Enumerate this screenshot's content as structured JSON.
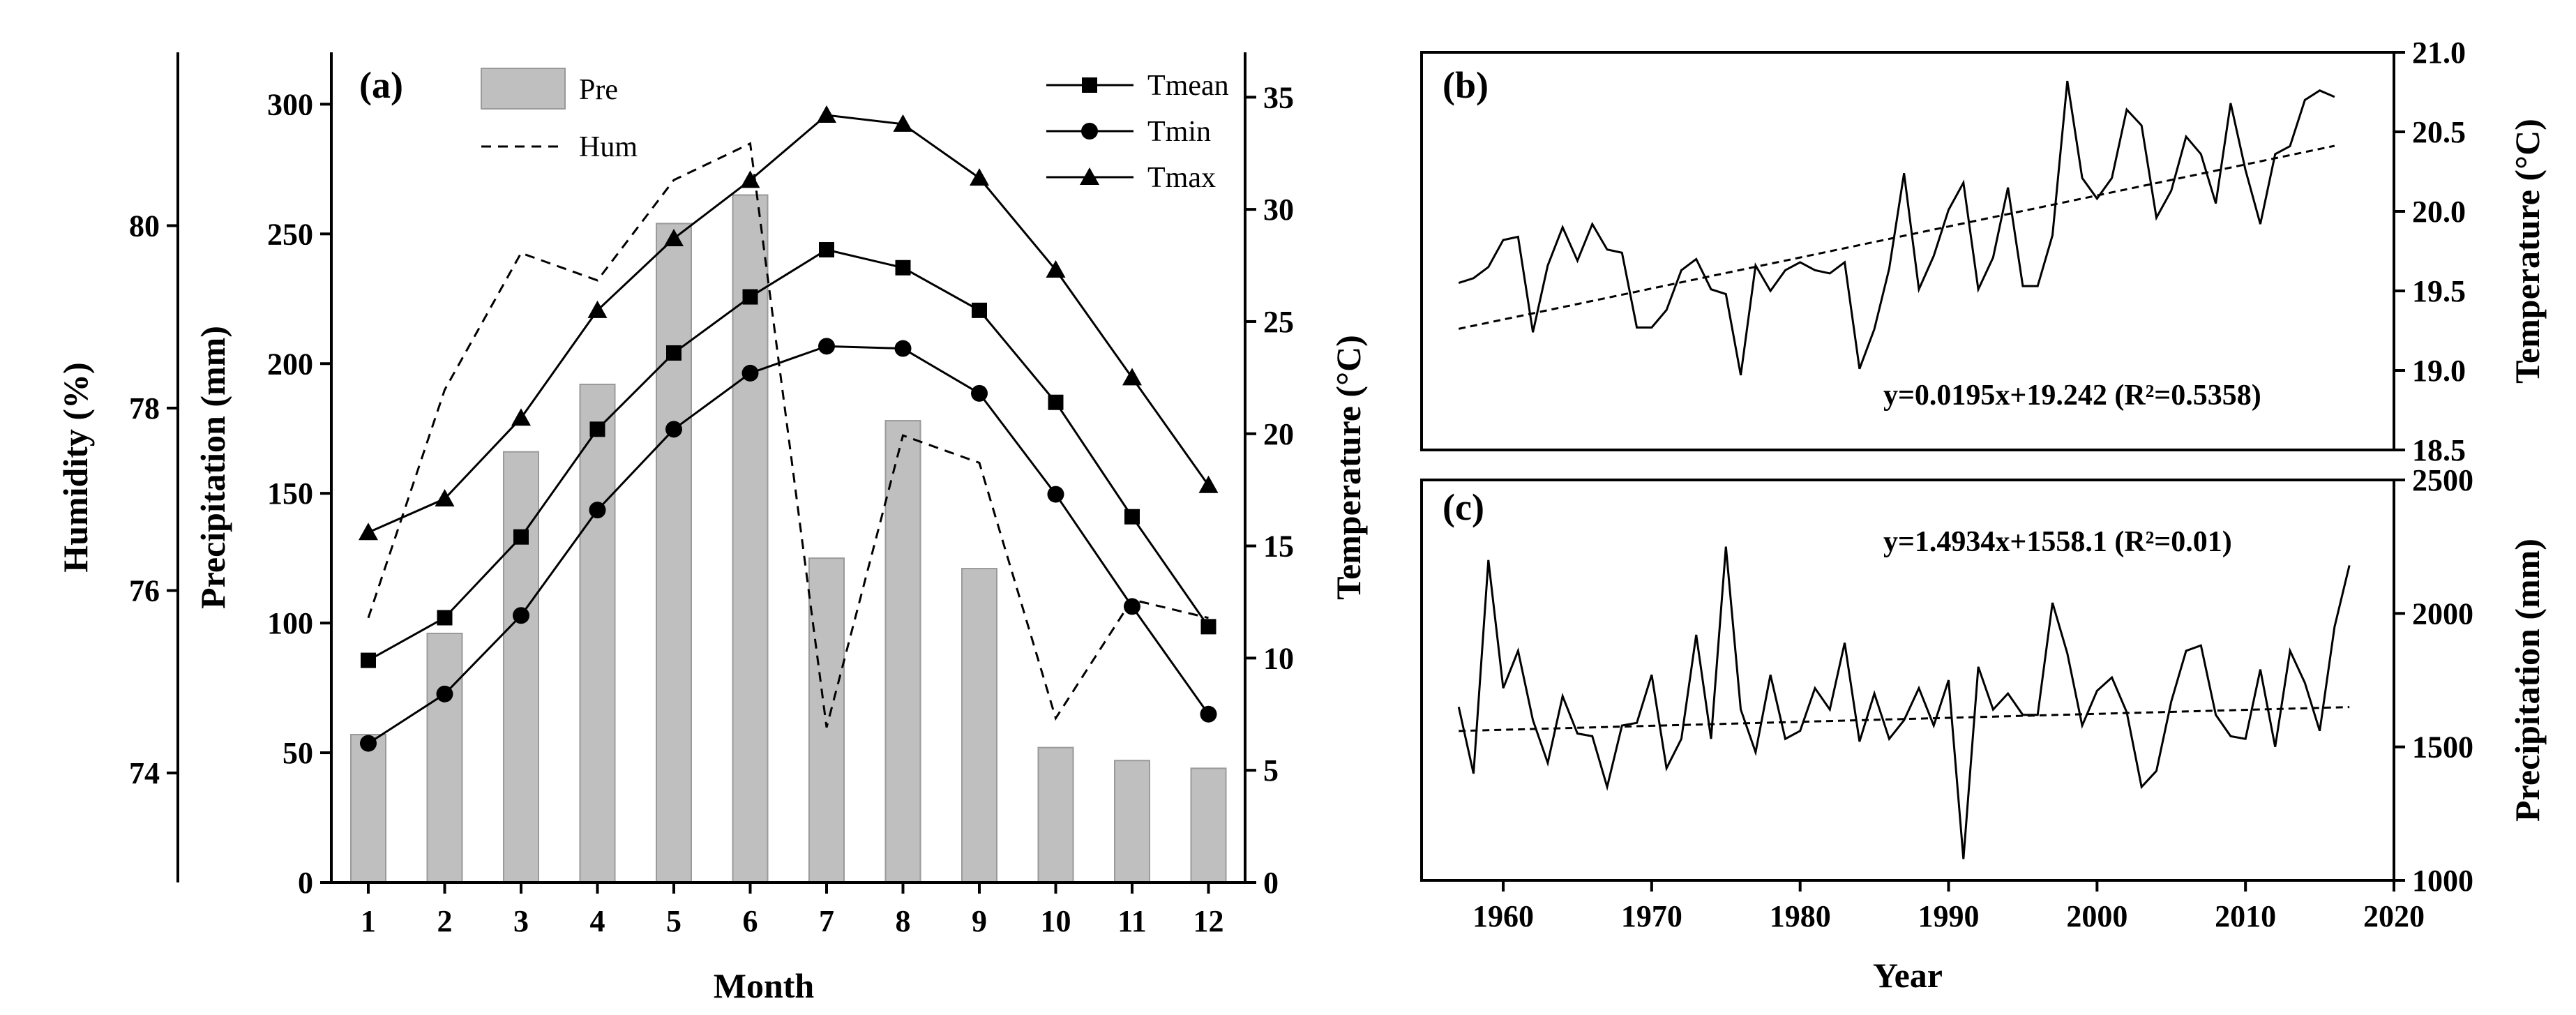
{
  "chart_data": [
    {
      "panel": "(a)",
      "type": "bar+line",
      "xlabel": "Month",
      "categories": [
        1,
        2,
        3,
        4,
        5,
        6,
        7,
        8,
        9,
        10,
        11,
        12
      ],
      "colors": {
        "bar": "#bfbfbf",
        "line": "#000000"
      },
      "bars": {
        "name": "Pre",
        "axis": "Precipitation (mm)",
        "values": [
          57,
          96,
          166,
          192,
          254,
          265,
          125,
          178,
          121,
          52,
          47,
          44
        ]
      },
      "hum": {
        "name": "Hum",
        "axis": "Humidity (%)",
        "values": [
          75.7,
          78.2,
          79.7,
          79.4,
          80.5,
          80.9,
          74.5,
          77.7,
          77.4,
          74.6,
          75.9,
          75.7
        ]
      },
      "temp_series": [
        {
          "name": "Tmean",
          "marker": "square",
          "values": [
            9.9,
            11.8,
            15.4,
            20.2,
            23.6,
            26.1,
            28.2,
            27.4,
            25.5,
            21.4,
            16.3,
            11.4
          ]
        },
        {
          "name": "Tmin",
          "marker": "circle",
          "values": [
            6.2,
            8.4,
            11.9,
            16.6,
            20.2,
            22.7,
            23.9,
            23.8,
            21.8,
            17.3,
            12.3,
            7.5
          ]
        },
        {
          "name": "Tmax",
          "marker": "triangle",
          "values": [
            15.6,
            17.1,
            20.7,
            25.5,
            28.7,
            31.3,
            34.2,
            33.8,
            31.4,
            27.3,
            22.5,
            17.7
          ]
        }
      ],
      "left_axis_humidity": {
        "title": "Humidity (%)",
        "ylim": [
          72.8,
          81.9
        ],
        "ticks": [
          "74",
          "76",
          "78",
          "80"
        ]
      },
      "left_axis_precip": {
        "title": "Precipitation (mm)",
        "ylim": [
          0,
          320
        ],
        "ticks": [
          "0",
          "50",
          "100",
          "150",
          "200",
          "250",
          "300"
        ]
      },
      "right_axis_temp": {
        "title": "Temperature (°C)",
        "ylim": [
          0,
          37
        ],
        "ticks": [
          "0",
          "5",
          "10",
          "15",
          "20",
          "25",
          "30",
          "35"
        ]
      },
      "legend": {
        "pre": "Pre",
        "hum": "Hum",
        "tmean": "Tmean",
        "tmin": "Tmin",
        "tmax": "Tmax"
      }
    },
    {
      "panel": "(b)",
      "type": "line",
      "x_start": 1957,
      "ylabel": "Temperature (°C)",
      "ylim": [
        18.5,
        21.0
      ],
      "yticks": [
        "18.5",
        "19.0",
        "19.5",
        "20.0",
        "20.5",
        "21.0"
      ],
      "values": [
        19.55,
        19.58,
        19.65,
        19.82,
        19.84,
        19.24,
        19.66,
        19.9,
        19.69,
        19.92,
        19.76,
        19.74,
        19.27,
        19.27,
        19.38,
        19.63,
        19.7,
        19.51,
        19.48,
        18.97,
        19.66,
        19.5,
        19.63,
        19.68,
        19.63,
        19.61,
        19.68,
        19.01,
        19.26,
        19.64,
        20.24,
        19.51,
        19.72,
        20.01,
        20.18,
        19.51,
        19.71,
        20.15,
        19.53,
        19.53,
        19.85,
        20.82,
        20.21,
        20.08,
        20.21,
        20.64,
        20.54,
        19.96,
        20.13,
        20.47,
        20.36,
        20.05,
        20.68,
        20.26,
        19.92,
        20.36,
        20.41,
        20.7,
        20.76,
        20.72
      ],
      "trend": {
        "slope": 0.0195,
        "intercept": 19.242
      },
      "equation": "y=0.0195x+19.242 (R²=0.5358)"
    },
    {
      "panel": "(c)",
      "type": "line",
      "x_start": 1957,
      "xlabel": "Year",
      "ylabel": "Precipitation (mm)",
      "ylim": [
        1000,
        2500
      ],
      "yticks": [
        "1000",
        "1500",
        "2000",
        "2500"
      ],
      "xticks": [
        "1960",
        "1970",
        "1980",
        "1990",
        "2000",
        "2010",
        "2020"
      ],
      "xlim": [
        1954.5,
        2020
      ],
      "values": [
        1650,
        1400,
        2200,
        1720,
        1860,
        1600,
        1440,
        1690,
        1550,
        1540,
        1350,
        1580,
        1590,
        1770,
        1420,
        1530,
        1920,
        1530,
        2250,
        1640,
        1480,
        1770,
        1530,
        1560,
        1720,
        1640,
        1890,
        1520,
        1700,
        1530,
        1600,
        1720,
        1580,
        1750,
        1080,
        1800,
        1640,
        1700,
        1620,
        1620,
        2040,
        1850,
        1580,
        1710,
        1760,
        1630,
        1350,
        1410,
        1670,
        1860,
        1880,
        1620,
        1540,
        1530,
        1790,
        1500,
        1860,
        1740,
        1560,
        1950,
        2180
      ],
      "trend": {
        "slope": 1.4934,
        "intercept": 1558.1
      },
      "equation": "y=1.4934x+1558.1 (R²=0.01)"
    }
  ]
}
